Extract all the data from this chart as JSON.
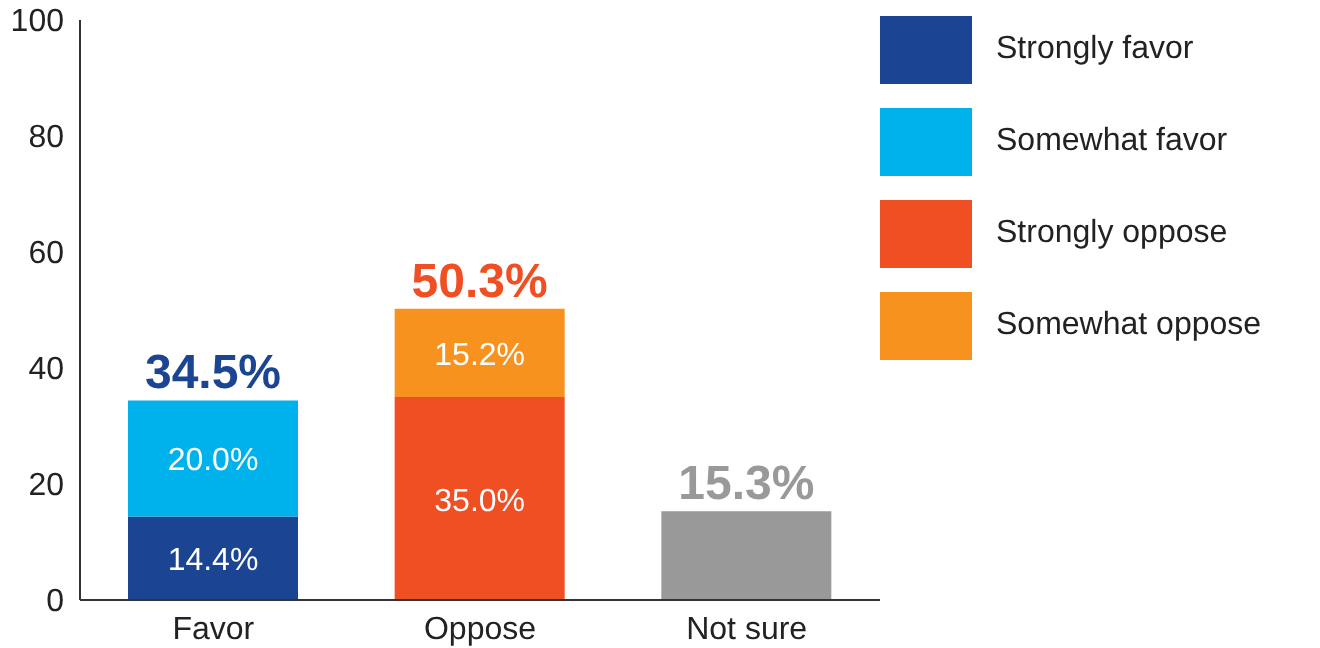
{
  "chart_data": {
    "type": "bar",
    "stacked": true,
    "categories": [
      "Favor",
      "Oppose",
      "Not sure"
    ],
    "series": [
      {
        "name": "Strongly favor",
        "color": "#1b4592",
        "values": [
          14.4,
          null,
          null
        ],
        "value_labels": [
          "14.4%",
          null,
          null
        ]
      },
      {
        "name": "Somewhat favor",
        "color": "#00b2ec",
        "values": [
          20.0,
          null,
          null
        ],
        "value_labels": [
          "20.0%",
          null,
          null
        ]
      },
      {
        "name": "Strongly oppose",
        "color": "#f04e23",
        "values": [
          null,
          35.0,
          null
        ],
        "value_labels": [
          null,
          "35.0%",
          null
        ]
      },
      {
        "name": "Somewhat oppose",
        "color": "#f7921e",
        "values": [
          null,
          15.2,
          null
        ],
        "value_labels": [
          null,
          "15.2%",
          null
        ]
      },
      {
        "color": "#999999",
        "values": [
          null,
          null,
          15.3
        ]
      }
    ],
    "totals": [
      "34.5%",
      "50.3%",
      "15.3%"
    ],
    "ylim": [
      0,
      100
    ],
    "yticks": [
      0,
      20,
      40,
      60,
      80,
      100
    ],
    "legend": "right"
  }
}
